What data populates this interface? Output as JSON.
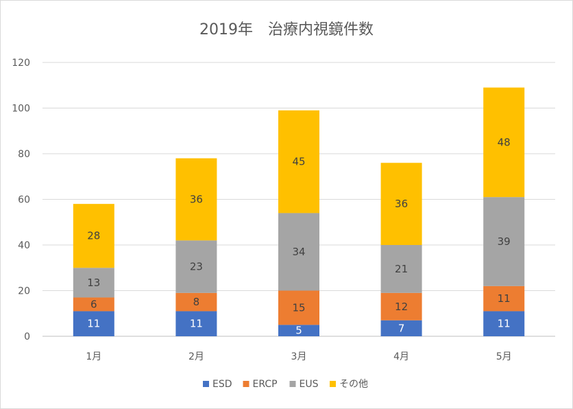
{
  "chart_data": {
    "type": "bar",
    "stacked": true,
    "title": "2019年　治療内視鏡件数",
    "categories": [
      "1月",
      "2月",
      "3月",
      "4月",
      "5月"
    ],
    "series": [
      {
        "name": "ESD",
        "color": "#4472c4",
        "label_color": "#ffffff",
        "values": [
          11,
          11,
          5,
          7,
          11
        ]
      },
      {
        "name": "ERCP",
        "color": "#ed7d31",
        "label_color": "#404040",
        "values": [
          6,
          8,
          15,
          12,
          11
        ]
      },
      {
        "name": "EUS",
        "color": "#a5a5a5",
        "label_color": "#404040",
        "values": [
          13,
          23,
          34,
          21,
          39
        ]
      },
      {
        "name": "その他",
        "color": "#ffc000",
        "label_color": "#404040",
        "values": [
          28,
          36,
          45,
          36,
          48
        ]
      }
    ],
    "ylim": [
      0,
      120
    ],
    "yticks": [
      "0",
      "20",
      "40",
      "60",
      "80",
      "100",
      "120"
    ],
    "grid": true,
    "legend": "bottom",
    "xlabel": "",
    "ylabel": ""
  }
}
